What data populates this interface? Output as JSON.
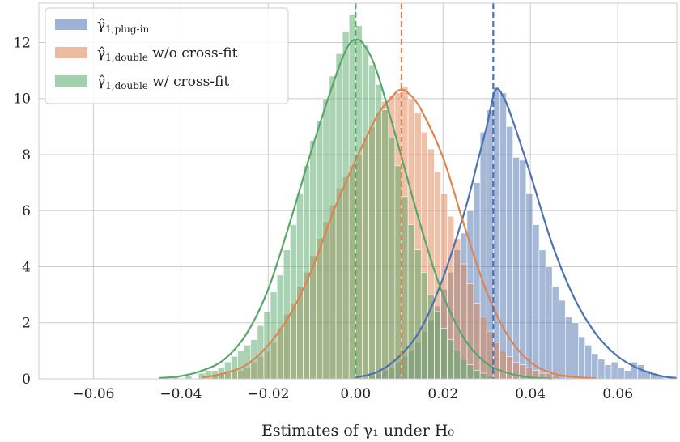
{
  "chart_data": {
    "type": "histogram",
    "xlabel": "Estimates of γ₁ under H₀",
    "ylabel": "",
    "xlim": [
      -0.0725,
      0.0735
    ],
    "ylim": [
      0,
      13.4
    ],
    "x_ticks": [
      -0.06,
      -0.04,
      -0.02,
      0.0,
      0.02,
      0.04,
      0.06
    ],
    "x_tick_labels": [
      "−0.06",
      "−0.04",
      "−0.02",
      "0.00",
      "0.02",
      "0.04",
      "0.06"
    ],
    "y_ticks": [
      0,
      2,
      4,
      6,
      8,
      10,
      12
    ],
    "y_tick_labels": [
      "0",
      "2",
      "4",
      "6",
      "8",
      "10",
      "12"
    ],
    "grid": true,
    "legend_position": "top-left",
    "bin_width": 0.0015,
    "series": [
      {
        "name": "γ̂ 1,plug-in",
        "legend_label": {
          "hat": "γ̂",
          "sub": "1,plug-in",
          "text": ""
        },
        "color": "#4c72b0",
        "mean_line": 0.0315,
        "bins": [
          [
            0.003,
            0.1
          ],
          [
            0.0045,
            0.2
          ],
          [
            0.006,
            0.3
          ],
          [
            0.0075,
            0.4
          ],
          [
            0.009,
            0.6
          ],
          [
            0.0105,
            0.8
          ],
          [
            0.012,
            1.0
          ],
          [
            0.0135,
            1.3
          ],
          [
            0.015,
            1.7
          ],
          [
            0.0165,
            2.1
          ],
          [
            0.018,
            2.6
          ],
          [
            0.0195,
            3.2
          ],
          [
            0.021,
            3.8
          ],
          [
            0.0225,
            4.6
          ],
          [
            0.024,
            5.2
          ],
          [
            0.0255,
            6.0
          ],
          [
            0.027,
            7.0
          ],
          [
            0.0285,
            8.8
          ],
          [
            0.03,
            9.6
          ],
          [
            0.0315,
            10.4
          ],
          [
            0.033,
            10.2
          ],
          [
            0.0345,
            9.0
          ],
          [
            0.036,
            7.9
          ],
          [
            0.0375,
            7.8
          ],
          [
            0.039,
            6.6
          ],
          [
            0.0405,
            5.5
          ],
          [
            0.042,
            4.6
          ],
          [
            0.0435,
            4.0
          ],
          [
            0.045,
            3.3
          ],
          [
            0.0465,
            2.8
          ],
          [
            0.048,
            2.2
          ],
          [
            0.0495,
            2.0
          ],
          [
            0.051,
            1.5
          ],
          [
            0.0525,
            1.2
          ],
          [
            0.054,
            0.9
          ],
          [
            0.0555,
            0.7
          ],
          [
            0.057,
            0.5
          ],
          [
            0.0585,
            0.6
          ],
          [
            0.06,
            0.4
          ],
          [
            0.0615,
            0.3
          ],
          [
            0.063,
            0.6
          ],
          [
            0.0645,
            0.5
          ],
          [
            0.066,
            0.3
          ],
          [
            0.0675,
            0.2
          ],
          [
            0.069,
            0.1
          ]
        ],
        "kde": [
          [
            0.0,
            0.05
          ],
          [
            0.005,
            0.25
          ],
          [
            0.01,
            0.8
          ],
          [
            0.015,
            1.8
          ],
          [
            0.02,
            3.6
          ],
          [
            0.025,
            6.0
          ],
          [
            0.028,
            7.8
          ],
          [
            0.03,
            9.0
          ],
          [
            0.032,
            10.3
          ],
          [
            0.034,
            10.0
          ],
          [
            0.036,
            9.2
          ],
          [
            0.04,
            7.3
          ],
          [
            0.045,
            4.8
          ],
          [
            0.05,
            2.9
          ],
          [
            0.055,
            1.6
          ],
          [
            0.06,
            0.8
          ],
          [
            0.065,
            0.35
          ],
          [
            0.07,
            0.1
          ],
          [
            0.0735,
            0.03
          ]
        ]
      },
      {
        "name": "γ̂ 1,double w/o cross-fit",
        "legend_label": {
          "hat": "γ̂",
          "sub": "1,double",
          "text": " w/o cross-fit"
        },
        "color": "#dd8452",
        "mean_line": 0.0105,
        "bins": [
          [
            -0.033,
            0.1
          ],
          [
            -0.0315,
            0.2
          ],
          [
            -0.03,
            0.2
          ],
          [
            -0.0285,
            0.3
          ],
          [
            -0.027,
            0.3
          ],
          [
            -0.0255,
            0.4
          ],
          [
            -0.024,
            0.6
          ],
          [
            -0.0225,
            0.8
          ],
          [
            -0.021,
            1.0
          ],
          [
            -0.0195,
            1.3
          ],
          [
            -0.018,
            1.8
          ],
          [
            -0.0165,
            2.3
          ],
          [
            -0.015,
            2.7
          ],
          [
            -0.0135,
            3.3
          ],
          [
            -0.012,
            3.8
          ],
          [
            -0.0105,
            4.4
          ],
          [
            -0.009,
            5.0
          ],
          [
            -0.0075,
            5.6
          ],
          [
            -0.006,
            6.2
          ],
          [
            -0.0045,
            6.8
          ],
          [
            -0.003,
            7.2
          ],
          [
            -0.0015,
            7.6
          ],
          [
            0.0,
            8.0
          ],
          [
            0.0015,
            8.6
          ],
          [
            0.003,
            9.0
          ],
          [
            0.0045,
            9.5
          ],
          [
            0.006,
            9.9
          ],
          [
            0.0075,
            10.1
          ],
          [
            0.009,
            10.2
          ],
          [
            0.0105,
            10.4
          ],
          [
            0.012,
            10.0
          ],
          [
            0.0135,
            9.5
          ],
          [
            0.015,
            8.8
          ],
          [
            0.0165,
            8.2
          ],
          [
            0.018,
            7.4
          ],
          [
            0.0195,
            6.6
          ],
          [
            0.021,
            5.8
          ],
          [
            0.0225,
            5.0
          ],
          [
            0.024,
            4.1
          ],
          [
            0.0255,
            3.4
          ],
          [
            0.027,
            2.7
          ],
          [
            0.0285,
            2.2
          ],
          [
            0.03,
            1.7
          ],
          [
            0.0315,
            1.3
          ],
          [
            0.033,
            1.0
          ],
          [
            0.0345,
            0.8
          ],
          [
            0.036,
            0.6
          ],
          [
            0.0375,
            0.5
          ],
          [
            0.039,
            0.4
          ],
          [
            0.0405,
            0.3
          ],
          [
            0.042,
            0.2
          ],
          [
            0.0435,
            0.2
          ],
          [
            0.045,
            0.1
          ]
        ],
        "kde": [
          [
            -0.035,
            0.05
          ],
          [
            -0.03,
            0.2
          ],
          [
            -0.025,
            0.5
          ],
          [
            -0.02,
            1.2
          ],
          [
            -0.015,
            2.3
          ],
          [
            -0.01,
            3.9
          ],
          [
            -0.005,
            6.0
          ],
          [
            0.0,
            7.8
          ],
          [
            0.005,
            9.4
          ],
          [
            0.008,
            10.0
          ],
          [
            0.01,
            10.3
          ],
          [
            0.012,
            10.2
          ],
          [
            0.015,
            9.6
          ],
          [
            0.02,
            7.9
          ],
          [
            0.025,
            5.4
          ],
          [
            0.03,
            3.1
          ],
          [
            0.035,
            1.5
          ],
          [
            0.04,
            0.6
          ],
          [
            0.045,
            0.2
          ],
          [
            0.05,
            0.07
          ],
          [
            0.055,
            0.02
          ]
        ]
      },
      {
        "name": "γ̂ 1,double w/ cross-fit",
        "legend_label": {
          "hat": "γ̂",
          "sub": "1,double",
          "text": " w/ cross-fit"
        },
        "color": "#55a868",
        "mean_line": 0.0,
        "bins": [
          [
            -0.045,
            0.05
          ],
          [
            -0.042,
            0.1
          ],
          [
            -0.039,
            0.1
          ],
          [
            -0.036,
            0.2
          ],
          [
            -0.0345,
            0.3
          ],
          [
            -0.033,
            0.3
          ],
          [
            -0.0315,
            0.4
          ],
          [
            -0.03,
            0.6
          ],
          [
            -0.0285,
            0.8
          ],
          [
            -0.027,
            1.0
          ],
          [
            -0.0255,
            1.2
          ],
          [
            -0.024,
            1.4
          ],
          [
            -0.0225,
            1.9
          ],
          [
            -0.021,
            2.4
          ],
          [
            -0.0195,
            3.1
          ],
          [
            -0.018,
            3.7
          ],
          [
            -0.0165,
            4.6
          ],
          [
            -0.015,
            5.5
          ],
          [
            -0.0135,
            6.6
          ],
          [
            -0.012,
            7.6
          ],
          [
            -0.0105,
            8.5
          ],
          [
            -0.009,
            9.2
          ],
          [
            -0.0075,
            10.0
          ],
          [
            -0.006,
            10.8
          ],
          [
            -0.0045,
            11.6
          ],
          [
            -0.003,
            12.4
          ],
          [
            -0.0015,
            13.0
          ],
          [
            0.0,
            12.6
          ],
          [
            0.0015,
            11.9
          ],
          [
            0.003,
            11.2
          ],
          [
            0.0045,
            10.5
          ],
          [
            0.006,
            9.6
          ],
          [
            0.0075,
            8.6
          ],
          [
            0.009,
            7.6
          ],
          [
            0.0105,
            6.5
          ],
          [
            0.012,
            5.5
          ],
          [
            0.0135,
            4.6
          ],
          [
            0.015,
            3.8
          ],
          [
            0.0165,
            3.0
          ],
          [
            0.018,
            2.4
          ],
          [
            0.0195,
            1.8
          ],
          [
            0.021,
            1.4
          ],
          [
            0.0225,
            1.0
          ],
          [
            0.024,
            0.7
          ],
          [
            0.0255,
            0.5
          ],
          [
            0.027,
            0.3
          ],
          [
            0.0285,
            0.2
          ],
          [
            0.03,
            0.1
          ]
        ],
        "kde": [
          [
            -0.045,
            0.03
          ],
          [
            -0.04,
            0.1
          ],
          [
            -0.035,
            0.3
          ],
          [
            -0.03,
            0.7
          ],
          [
            -0.025,
            1.6
          ],
          [
            -0.02,
            3.2
          ],
          [
            -0.015,
            5.6
          ],
          [
            -0.01,
            8.2
          ],
          [
            -0.005,
            10.6
          ],
          [
            -0.002,
            11.8
          ],
          [
            0.0,
            12.1
          ],
          [
            0.002,
            11.9
          ],
          [
            0.005,
            10.9
          ],
          [
            0.01,
            8.2
          ],
          [
            0.015,
            5.4
          ],
          [
            0.02,
            3.0
          ],
          [
            0.025,
            1.4
          ],
          [
            0.03,
            0.55
          ],
          [
            0.035,
            0.2
          ],
          [
            0.04,
            0.05
          ],
          [
            0.045,
            0.01
          ]
        ]
      }
    ]
  }
}
